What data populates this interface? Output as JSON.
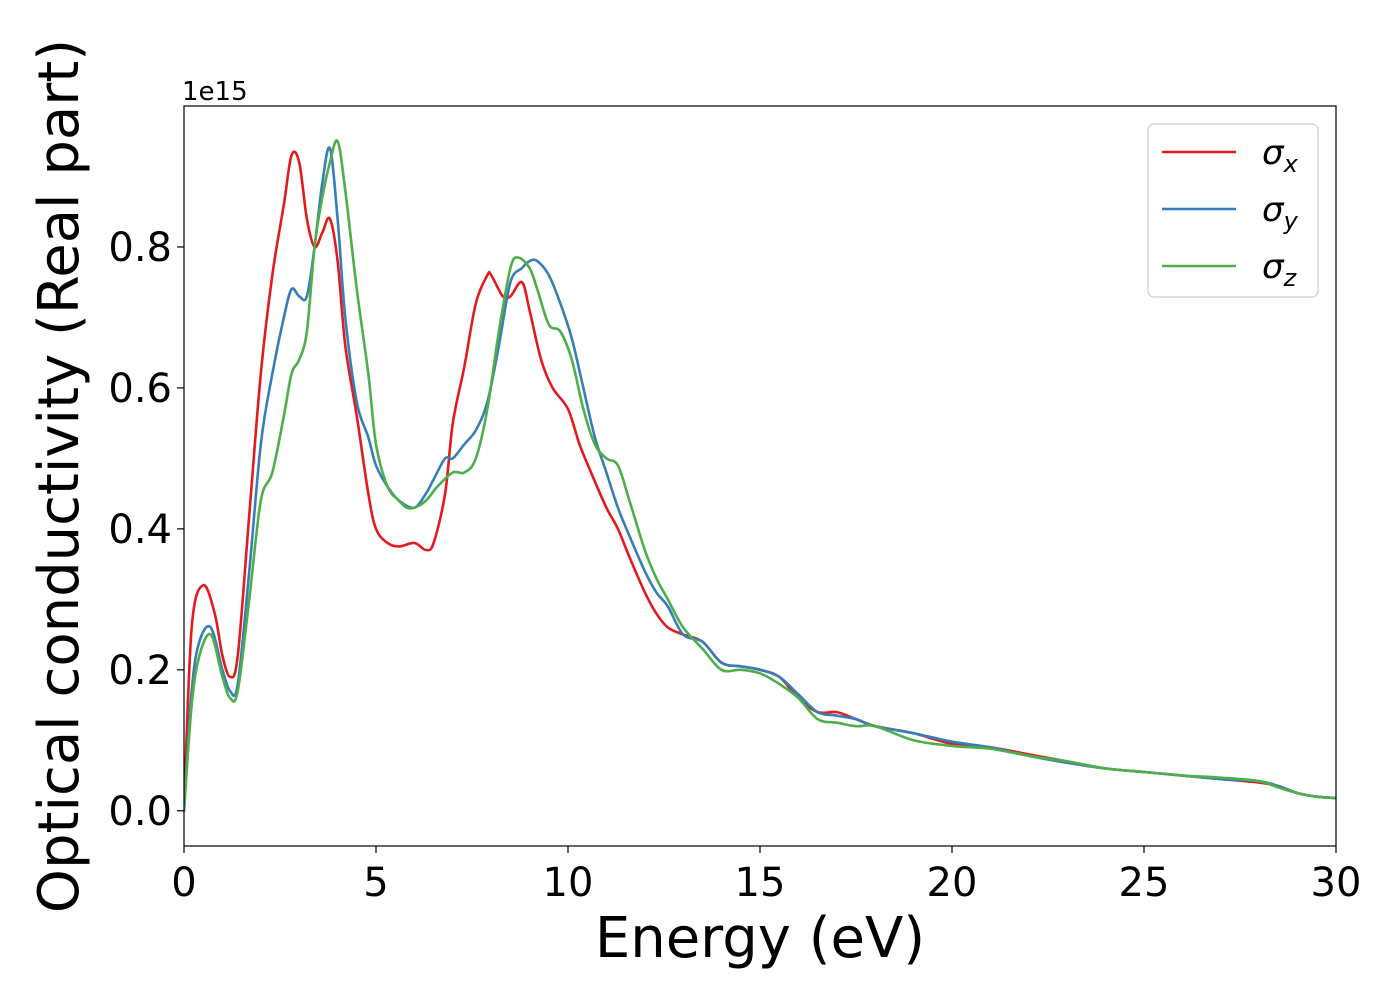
{
  "chart_data": {
    "type": "line",
    "xlabel": "Energy (eV)",
    "ylabel": "Optical conductivity (Real part)",
    "y_offset_text": "1e15",
    "xlim": [
      0,
      30
    ],
    "ylim": [
      -0.05,
      1.0
    ],
    "y_scale_factor": 1000000000000000.0,
    "x_ticks": [
      0,
      5,
      10,
      15,
      20,
      25,
      30
    ],
    "x_tick_labels": [
      "0",
      "5",
      "10",
      "15",
      "20",
      "25",
      "30"
    ],
    "y_ticks": [
      0.0,
      0.2,
      0.4,
      0.6,
      0.8
    ],
    "y_tick_labels": [
      "0.0",
      "0.2",
      "0.4",
      "0.6",
      "0.8"
    ],
    "grid": false,
    "legend_position": "top-right",
    "series": [
      {
        "name": "σx",
        "symbol": "σ",
        "subscript": "x",
        "color": "#e41a1c",
        "x": [
          0,
          0.2,
          0.5,
          0.8,
          1.0,
          1.2,
          1.4,
          1.7,
          2.0,
          2.3,
          2.6,
          2.8,
          3.0,
          3.2,
          3.4,
          3.6,
          3.8,
          4.0,
          4.2,
          4.5,
          4.8,
          5.0,
          5.3,
          5.6,
          6.0,
          6.3,
          6.5,
          6.8,
          7.0,
          7.3,
          7.6,
          7.9,
          8.0,
          8.3,
          8.5,
          8.8,
          9.0,
          9.3,
          9.6,
          10.0,
          10.3,
          10.6,
          11.0,
          11.3,
          11.6,
          12.0,
          12.3,
          12.6,
          13.0,
          13.5,
          14.0,
          14.5,
          15.0,
          15.5,
          16.0,
          16.5,
          17.0,
          17.5,
          18.0,
          19.0,
          20.0,
          21.0,
          22.0,
          23.0,
          24.0,
          25.0,
          26.0,
          27.0,
          28.0,
          28.5,
          29.0,
          29.5,
          30.0
        ],
        "y": [
          0.0,
          0.26,
          0.32,
          0.28,
          0.22,
          0.19,
          0.22,
          0.42,
          0.62,
          0.76,
          0.86,
          0.93,
          0.92,
          0.84,
          0.8,
          0.82,
          0.84,
          0.78,
          0.66,
          0.56,
          0.45,
          0.4,
          0.38,
          0.375,
          0.38,
          0.37,
          0.38,
          0.45,
          0.55,
          0.63,
          0.72,
          0.76,
          0.76,
          0.73,
          0.73,
          0.75,
          0.71,
          0.64,
          0.6,
          0.57,
          0.52,
          0.48,
          0.43,
          0.4,
          0.36,
          0.31,
          0.28,
          0.26,
          0.25,
          0.24,
          0.21,
          0.205,
          0.2,
          0.19,
          0.16,
          0.14,
          0.14,
          0.13,
          0.12,
          0.11,
          0.095,
          0.09,
          0.08,
          0.07,
          0.06,
          0.055,
          0.05,
          0.045,
          0.04,
          0.035,
          0.025,
          0.02,
          0.018
        ]
      },
      {
        "name": "σy",
        "symbol": "σ",
        "subscript": "y",
        "color": "#377eb8",
        "x": [
          0,
          0.2,
          0.4,
          0.7,
          1.0,
          1.2,
          1.4,
          1.7,
          2.0,
          2.3,
          2.6,
          2.8,
          3.0,
          3.2,
          3.4,
          3.6,
          3.8,
          4.0,
          4.2,
          4.5,
          4.8,
          5.0,
          5.3,
          5.6,
          6.0,
          6.3,
          6.5,
          6.8,
          7.0,
          7.3,
          7.6,
          7.9,
          8.2,
          8.5,
          8.8,
          9.0,
          9.2,
          9.5,
          9.8,
          10.1,
          10.4,
          10.7,
          11.0,
          11.3,
          11.6,
          12.0,
          12.3,
          12.6,
          13.0,
          13.5,
          14.0,
          14.5,
          15.0,
          15.5,
          16.0,
          16.5,
          17.0,
          17.5,
          18.0,
          19.0,
          20.0,
          21.0,
          22.0,
          23.0,
          24.0,
          25.0,
          26.0,
          27.0,
          28.0,
          28.5,
          29.0,
          29.5,
          30.0
        ],
        "y": [
          0.0,
          0.17,
          0.24,
          0.26,
          0.2,
          0.17,
          0.18,
          0.34,
          0.52,
          0.62,
          0.7,
          0.74,
          0.73,
          0.73,
          0.8,
          0.89,
          0.94,
          0.84,
          0.7,
          0.58,
          0.53,
          0.49,
          0.46,
          0.44,
          0.43,
          0.45,
          0.47,
          0.5,
          0.5,
          0.52,
          0.54,
          0.58,
          0.66,
          0.75,
          0.77,
          0.78,
          0.78,
          0.76,
          0.72,
          0.67,
          0.6,
          0.53,
          0.48,
          0.43,
          0.39,
          0.34,
          0.31,
          0.29,
          0.25,
          0.24,
          0.21,
          0.205,
          0.2,
          0.19,
          0.165,
          0.14,
          0.135,
          0.13,
          0.12,
          0.11,
          0.098,
          0.09,
          0.078,
          0.068,
          0.06,
          0.055,
          0.05,
          0.045,
          0.042,
          0.035,
          0.025,
          0.02,
          0.018
        ]
      },
      {
        "name": "σz",
        "symbol": "σ",
        "subscript": "z",
        "color": "#4daf4a",
        "x": [
          0,
          0.2,
          0.4,
          0.7,
          1.0,
          1.2,
          1.4,
          1.7,
          2.0,
          2.3,
          2.6,
          2.8,
          3.0,
          3.2,
          3.4,
          3.6,
          3.8,
          4.0,
          4.2,
          4.5,
          4.8,
          5.0,
          5.3,
          5.6,
          5.8,
          6.0,
          6.3,
          6.6,
          7.0,
          7.3,
          7.6,
          7.9,
          8.2,
          8.5,
          8.7,
          9.0,
          9.2,
          9.5,
          9.8,
          10.1,
          10.4,
          10.7,
          11.0,
          11.3,
          11.6,
          12.0,
          12.3,
          12.6,
          13.0,
          13.5,
          14.0,
          14.5,
          15.0,
          15.5,
          16.0,
          16.5,
          17.0,
          17.5,
          18.0,
          19.0,
          20.0,
          21.0,
          22.0,
          23.0,
          24.0,
          25.0,
          26.0,
          27.0,
          28.0,
          28.5,
          29.0,
          29.5,
          30.0
        ],
        "y": [
          0.0,
          0.15,
          0.22,
          0.25,
          0.19,
          0.16,
          0.17,
          0.3,
          0.44,
          0.48,
          0.56,
          0.62,
          0.64,
          0.68,
          0.8,
          0.87,
          0.92,
          0.95,
          0.88,
          0.74,
          0.62,
          0.52,
          0.46,
          0.44,
          0.43,
          0.43,
          0.44,
          0.46,
          0.48,
          0.48,
          0.5,
          0.57,
          0.68,
          0.77,
          0.785,
          0.77,
          0.74,
          0.69,
          0.68,
          0.64,
          0.57,
          0.52,
          0.5,
          0.49,
          0.44,
          0.37,
          0.33,
          0.3,
          0.26,
          0.23,
          0.2,
          0.2,
          0.195,
          0.18,
          0.16,
          0.13,
          0.125,
          0.12,
          0.12,
          0.1,
          0.092,
          0.088,
          0.078,
          0.07,
          0.06,
          0.055,
          0.05,
          0.047,
          0.042,
          0.033,
          0.025,
          0.02,
          0.018
        ]
      }
    ]
  }
}
